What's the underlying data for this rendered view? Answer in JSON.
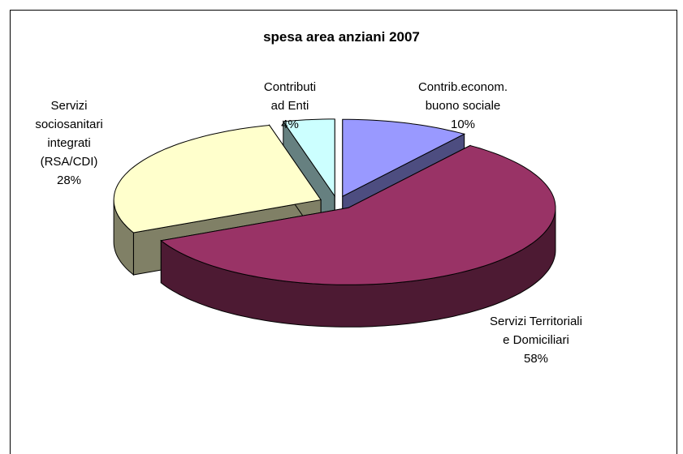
{
  "chart_data": {
    "type": "pie3d",
    "title": "spesa area anziani 2007",
    "categories": [
      "Contrib.econom. buono sociale",
      "Servizi Territoriali e Domiciliari",
      "Servizi sociosanitari integrati (RSA/CDI)",
      "Contributi ad Enti"
    ],
    "values": [
      10,
      58,
      28,
      4
    ],
    "value_labels": [
      "10%",
      "58%",
      "28%",
      "4%"
    ],
    "colors": [
      "#9999ff",
      "#993366",
      "#ffffcc",
      "#ccffff"
    ]
  }
}
